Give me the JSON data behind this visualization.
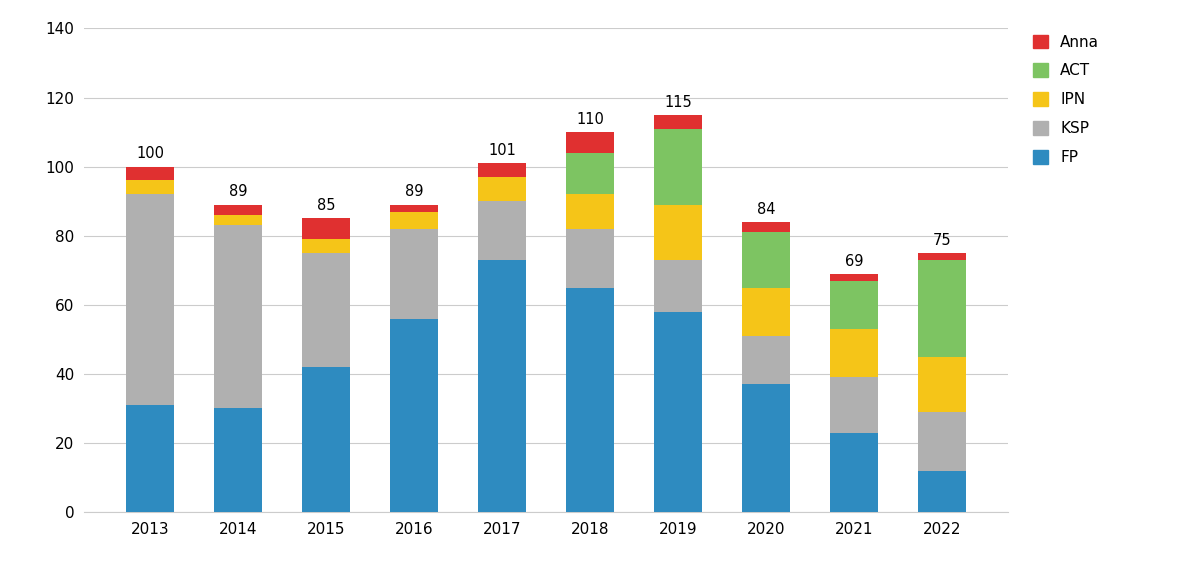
{
  "years": [
    2013,
    2014,
    2015,
    2016,
    2017,
    2018,
    2019,
    2020,
    2021,
    2022
  ],
  "totals": [
    100,
    89,
    85,
    89,
    101,
    110,
    115,
    84,
    69,
    75
  ],
  "FP": [
    31,
    30,
    42,
    56,
    73,
    65,
    58,
    37,
    23,
    12
  ],
  "KSP": [
    61,
    53,
    33,
    26,
    17,
    17,
    15,
    14,
    16,
    17
  ],
  "IPN": [
    4,
    3,
    4,
    5,
    7,
    10,
    16,
    14,
    14,
    16
  ],
  "ACT": [
    0,
    0,
    0,
    0,
    0,
    12,
    22,
    16,
    14,
    28
  ],
  "Anna": [
    4,
    3,
    6,
    2,
    4,
    6,
    4,
    3,
    2,
    2
  ],
  "colors": {
    "FP": "#2E8BC0",
    "KSP": "#B0B0B0",
    "IPN": "#F5C518",
    "ACT": "#7DC462",
    "Anna": "#E03030"
  },
  "ylim": [
    0,
    140
  ],
  "yticks": [
    0,
    20,
    40,
    60,
    80,
    100,
    120,
    140
  ],
  "bar_width": 0.55,
  "legend_fontsize": 11,
  "total_label_fontsize": 10.5
}
